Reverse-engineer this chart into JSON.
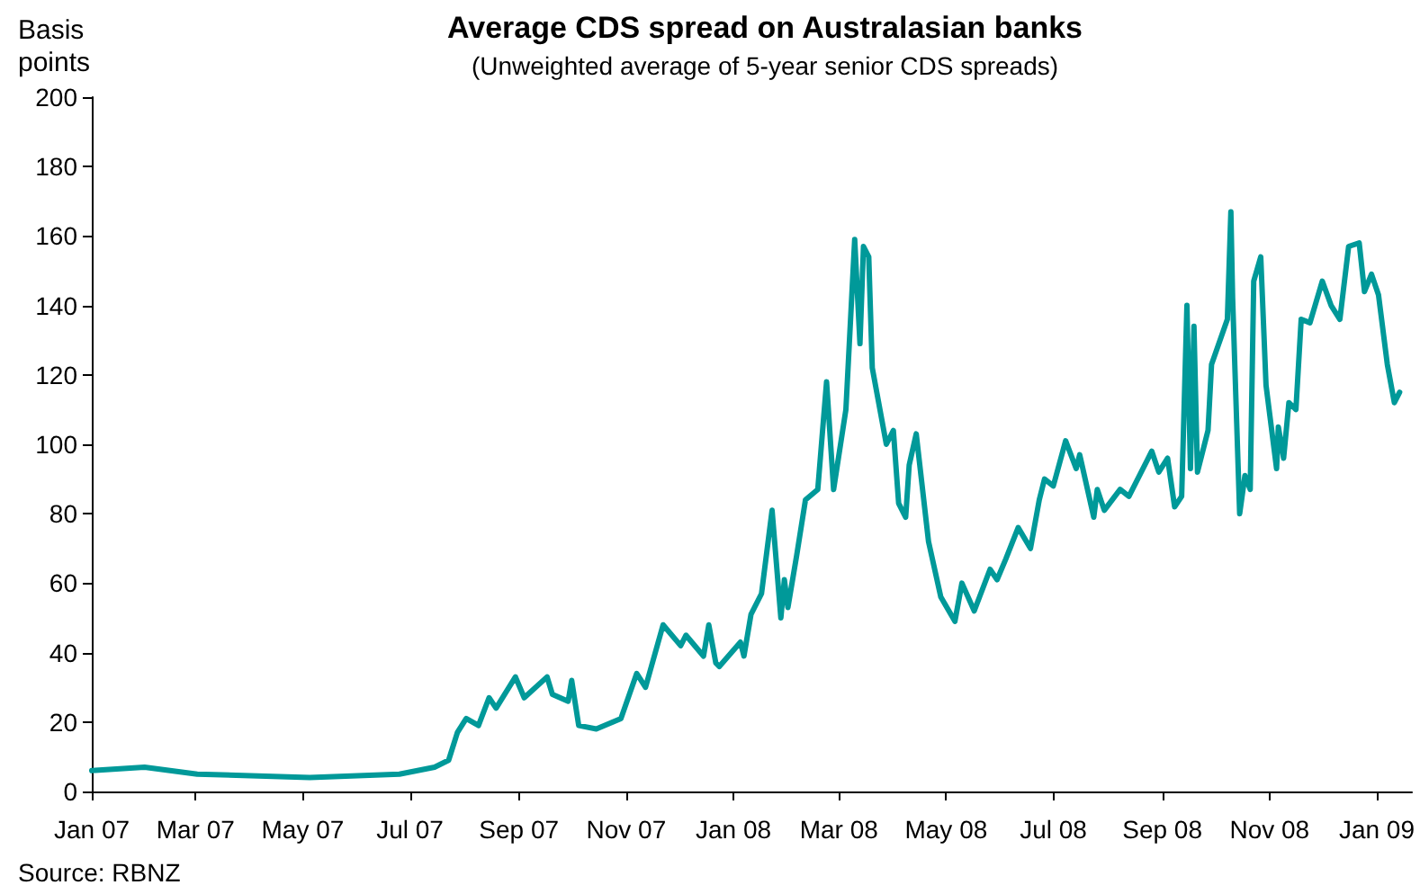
{
  "chart_data": {
    "type": "line",
    "title": "Average CDS spread on Australasian banks",
    "subtitle": "(Unweighted average of 5-year senior CDS spreads)",
    "ylabel": "Basis points",
    "annotations": [
      "Source: RBNZ"
    ],
    "x": [
      "2007-01-01",
      "2007-01-31",
      "2007-03-02",
      "2007-05-05",
      "2007-06-25",
      "2007-07-15",
      "2007-07-23",
      "2007-07-28",
      "2007-08-02",
      "2007-08-09",
      "2007-08-15",
      "2007-08-19",
      "2007-08-30",
      "2007-09-04",
      "2007-09-17",
      "2007-09-20",
      "2007-09-29",
      "2007-10-01",
      "2007-10-05",
      "2007-10-15",
      "2007-10-29",
      "2007-11-07",
      "2007-11-12",
      "2007-11-22",
      "2007-12-02",
      "2007-12-05",
      "2007-12-15",
      "2007-12-18",
      "2007-12-22",
      "2007-12-24",
      "2008-01-05",
      "2008-01-07",
      "2008-01-11",
      "2008-01-17",
      "2008-01-23",
      "2008-01-28",
      "2008-01-30",
      "2008-02-01",
      "2008-02-06",
      "2008-02-11",
      "2008-02-18",
      "2008-02-23",
      "2008-02-27",
      "2008-03-05",
      "2008-03-10",
      "2008-03-13",
      "2008-03-15",
      "2008-03-18",
      "2008-03-20",
      "2008-03-28",
      "2008-04-01",
      "2008-04-04",
      "2008-04-08",
      "2008-04-10",
      "2008-04-14",
      "2008-04-21",
      "2008-04-28",
      "2008-05-06",
      "2008-05-10",
      "2008-05-17",
      "2008-05-26",
      "2008-05-30",
      "2008-06-04",
      "2008-06-11",
      "2008-06-18",
      "2008-06-23",
      "2008-06-26",
      "2008-07-01",
      "2008-07-08",
      "2008-07-14",
      "2008-07-16",
      "2008-07-24",
      "2008-07-26",
      "2008-07-30",
      "2008-08-08",
      "2008-08-13",
      "2008-08-20",
      "2008-08-26",
      "2008-08-30",
      "2008-09-04",
      "2008-09-08",
      "2008-09-12",
      "2008-09-15",
      "2008-09-17",
      "2008-09-19",
      "2008-09-21",
      "2008-09-27",
      "2008-09-29",
      "2008-10-08",
      "2008-10-10",
      "2008-10-11",
      "2008-10-15",
      "2008-10-18",
      "2008-10-21",
      "2008-10-23",
      "2008-10-27",
      "2008-10-30",
      "2008-11-05",
      "2008-11-06",
      "2008-11-09",
      "2008-11-12",
      "2008-11-16",
      "2008-11-19",
      "2008-11-24",
      "2008-12-01",
      "2008-12-06",
      "2008-12-11",
      "2008-12-16",
      "2008-12-22",
      "2008-12-25",
      "2008-12-29",
      "2009-01-02",
      "2009-01-07",
      "2009-01-11",
      "2009-01-14"
    ],
    "series": [
      {
        "color": "#009999",
        "values": [
          6,
          7,
          5,
          4,
          5,
          7,
          9,
          17,
          21,
          19,
          27,
          24,
          33,
          27,
          33,
          28,
          26,
          32,
          19,
          18,
          21,
          34,
          30,
          48,
          42,
          45,
          39,
          48,
          37,
          36,
          43,
          39,
          51,
          57,
          81,
          50,
          61,
          53,
          68,
          84,
          87,
          118,
          87,
          110,
          159,
          129,
          157,
          154,
          122,
          100,
          104,
          83,
          79,
          94,
          103,
          72,
          56,
          49,
          60,
          52,
          64,
          61,
          67,
          76,
          70,
          84,
          90,
          88,
          101,
          93,
          97,
          79,
          87,
          81,
          87,
          85,
          92,
          98,
          92,
          96,
          82,
          85,
          140,
          93,
          134,
          92,
          104,
          123,
          136,
          167,
          142,
          80,
          91,
          87,
          147,
          154,
          117,
          93,
          105,
          96,
          112,
          110,
          136,
          135,
          147,
          140,
          136,
          157,
          158,
          144,
          149,
          143,
          123,
          112,
          115
        ]
      }
    ],
    "xlim": [
      "2007-01-01",
      "2009-01-21"
    ],
    "xticks": [
      {
        "value": "2007-01-01",
        "label": "Jan 07"
      },
      {
        "value": "2007-03-01",
        "label": "Mar 07"
      },
      {
        "value": "2007-05-01",
        "label": "May 07"
      },
      {
        "value": "2007-07-01",
        "label": "Jul 07"
      },
      {
        "value": "2007-09-01",
        "label": "Sep 07"
      },
      {
        "value": "2007-11-01",
        "label": "Nov 07"
      },
      {
        "value": "2008-01-01",
        "label": "Jan 08"
      },
      {
        "value": "2008-03-01",
        "label": "Mar 08"
      },
      {
        "value": "2008-05-01",
        "label": "May 08"
      },
      {
        "value": "2008-07-01",
        "label": "Jul 08"
      },
      {
        "value": "2008-09-01",
        "label": "Sep 08"
      },
      {
        "value": "2008-11-01",
        "label": "Nov 08"
      },
      {
        "value": "2009-01-01",
        "label": "Jan 09"
      }
    ],
    "ylim": [
      0,
      200
    ],
    "yticks": [
      0,
      20,
      40,
      60,
      80,
      100,
      120,
      140,
      160,
      180,
      200
    ],
    "grid": false,
    "line_style": "solid"
  }
}
